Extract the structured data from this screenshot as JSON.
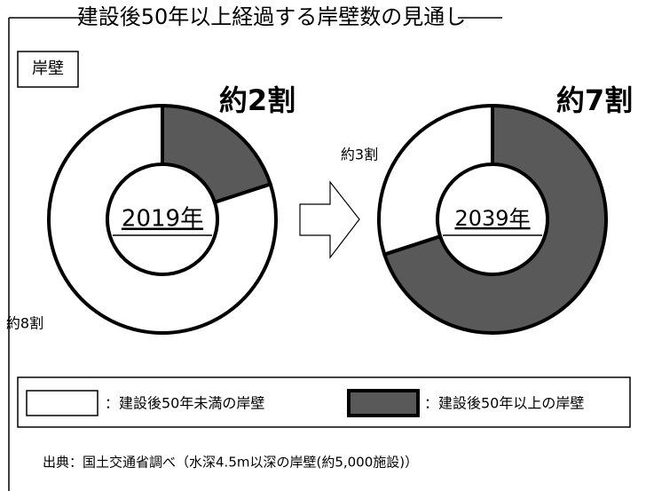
{
  "title": "建設後50年以上経過する岸壁数の見通し",
  "box_label": "岸壁",
  "legend": {
    "items": [
      {
        "label": "：建設後50年未満の岸壁",
        "color": "#ffffff"
      },
      {
        "label": "：建設後50年以上の岸壁",
        "color": "#595959"
      }
    ]
  },
  "source": "出典：国土交通省調べ（水深4.5m以深の岸壁(約5,000施設)）",
  "chart_data": [
    {
      "type": "pie",
      "donut": true,
      "center_label": "2019年",
      "values": [
        8,
        2
      ],
      "value_labels": [
        "約8割",
        "約2割"
      ],
      "colors": [
        "#ffffff",
        "#595959"
      ]
    },
    {
      "type": "pie",
      "donut": true,
      "center_label": "2039年",
      "values": [
        3,
        7
      ],
      "value_labels": [
        "約3割",
        "約7割"
      ],
      "colors": [
        "#ffffff",
        "#595959"
      ]
    }
  ]
}
